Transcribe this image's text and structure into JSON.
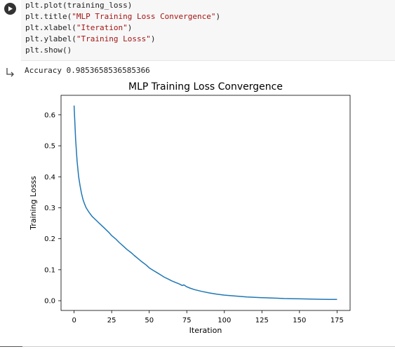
{
  "code_cell": {
    "lines": [
      [
        {
          "t": "plt.plot(training_loss)",
          "s": false
        }
      ],
      [
        {
          "t": "plt.title(",
          "s": false
        },
        {
          "t": "\"MLP Training Loss Convergence\"",
          "s": true
        },
        {
          "t": ")",
          "s": false
        }
      ],
      [
        {
          "t": "plt.xlabel(",
          "s": false
        },
        {
          "t": "\"Iteration\"",
          "s": true
        },
        {
          "t": ")",
          "s": false
        }
      ],
      [
        {
          "t": "plt.ylabel(",
          "s": false
        },
        {
          "t": "\"Training Losss\"",
          "s": true
        },
        {
          "t": ")",
          "s": false
        }
      ],
      [
        {
          "t": "plt.show()",
          "s": false
        }
      ]
    ],
    "colors": {
      "code": "#212121",
      "string": "#a31515",
      "editor_bg": "#f7f7f7"
    }
  },
  "output": {
    "stdout": "Accuracy 0.9853658536585366"
  },
  "chart_data": {
    "type": "line",
    "title": "MLP Training Loss Convergence",
    "xlabel": "Iteration",
    "ylabel": "Training Losss",
    "xlim": [
      -8.7,
      183.7
    ],
    "ylim": [
      -0.0315,
      0.663
    ],
    "xticks": [
      0,
      25,
      50,
      75,
      100,
      125,
      150,
      175
    ],
    "yticks": [
      0.0,
      0.1,
      0.2,
      0.3,
      0.4,
      0.5,
      0.6
    ],
    "ytick_labels": [
      "0.0",
      "0.1",
      "0.2",
      "0.3",
      "0.4",
      "0.5",
      "0.6"
    ],
    "grid": false,
    "line_color": "#1f77b4",
    "series": [
      {
        "x": [
          0,
          1,
          2,
          3,
          4,
          5,
          6,
          7,
          8,
          10,
          12,
          15,
          18,
          20,
          23,
          25,
          28,
          30,
          33,
          35,
          38,
          40,
          43,
          45,
          48,
          50,
          53,
          55,
          58,
          60,
          63,
          65,
          68,
          70,
          72,
          73,
          75,
          77,
          80,
          85,
          90,
          95,
          100,
          105,
          110,
          115,
          120,
          125,
          130,
          135,
          140,
          145,
          150,
          155,
          160,
          165,
          170,
          175
        ],
        "y": [
          0.63,
          0.52,
          0.45,
          0.4,
          0.37,
          0.345,
          0.325,
          0.312,
          0.3,
          0.285,
          0.272,
          0.258,
          0.244,
          0.235,
          0.221,
          0.21,
          0.198,
          0.188,
          0.175,
          0.166,
          0.155,
          0.146,
          0.134,
          0.126,
          0.115,
          0.106,
          0.097,
          0.091,
          0.082,
          0.076,
          0.069,
          0.064,
          0.058,
          0.054,
          0.049,
          0.051,
          0.045,
          0.041,
          0.036,
          0.03,
          0.025,
          0.021,
          0.018,
          0.016,
          0.014,
          0.012,
          0.011,
          0.01,
          0.009,
          0.008,
          0.007,
          0.0065,
          0.006,
          0.0055,
          0.005,
          0.0045,
          0.004,
          0.004
        ]
      }
    ]
  }
}
